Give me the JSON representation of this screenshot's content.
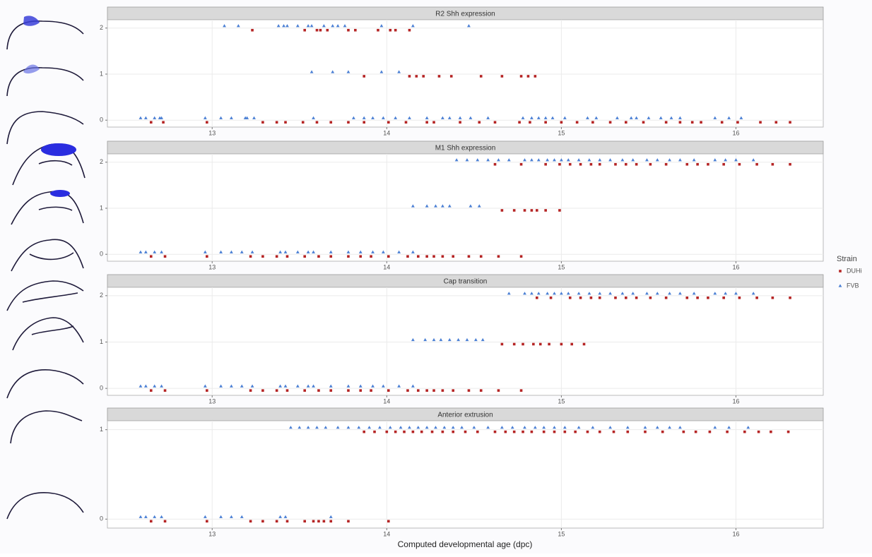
{
  "chart_data": [
    {
      "type": "scatter",
      "title": "R2 Shh expression",
      "legend_title": "Strain",
      "xlim": [
        12.4,
        16.5
      ],
      "xticks": [
        13,
        14,
        15,
        16
      ],
      "ylim": [
        -0.15,
        2.18
      ],
      "yticks": [
        0,
        1,
        2
      ],
      "grid": true,
      "series": [
        {
          "name": "DUHi",
          "color": "#b52424",
          "marker": "square",
          "x": [
            13.23,
            13.53,
            13.6,
            13.62,
            13.66,
            13.78,
            13.82,
            13.95,
            14.02,
            14.05,
            14.13,
            13.87,
            14.13,
            14.17,
            14.21,
            14.3,
            14.37,
            14.54,
            14.66,
            14.77,
            14.81,
            14.85,
            12.65,
            12.72,
            12.97,
            13.29,
            13.37,
            13.42,
            13.52,
            13.6,
            13.68,
            13.78,
            13.87,
            14.01,
            14.11,
            14.23,
            14.27,
            14.42,
            14.53,
            14.62,
            14.76,
            14.82,
            14.91,
            15.0,
            15.09,
            15.18,
            15.28,
            15.37,
            15.47,
            15.6,
            15.68,
            15.75,
            15.8,
            15.92,
            16.01,
            16.14,
            16.23,
            16.31
          ],
          "values": [
            2,
            2,
            2,
            2,
            2,
            2,
            2,
            2,
            2,
            2,
            2,
            1,
            1,
            1,
            1,
            1,
            1,
            1,
            1,
            1,
            1,
            1,
            0,
            0,
            0,
            0,
            0,
            0,
            0,
            0,
            0,
            0,
            0,
            0,
            0,
            0,
            0,
            0,
            0,
            0,
            0,
            0,
            0,
            0,
            0,
            0,
            0,
            0,
            0,
            0,
            0,
            0,
            0,
            0,
            0,
            0,
            0,
            0
          ]
        },
        {
          "name": "FVB",
          "color": "#4a7fd4",
          "marker": "triangle",
          "x": [
            13.07,
            13.15,
            13.38,
            13.41,
            13.43,
            13.49,
            13.55,
            13.57,
            13.64,
            13.69,
            13.72,
            13.76,
            13.97,
            14.15,
            14.47,
            13.57,
            13.69,
            13.78,
            13.97,
            14.07,
            12.59,
            12.62,
            12.67,
            12.7,
            12.71,
            12.96,
            13.05,
            13.11,
            13.19,
            13.2,
            13.24,
            13.58,
            13.81,
            13.87,
            13.92,
            13.98,
            14.05,
            14.13,
            14.23,
            14.32,
            14.36,
            14.42,
            14.48,
            14.58,
            14.78,
            14.83,
            14.87,
            14.91,
            14.95,
            15.02,
            15.15,
            15.2,
            15.32,
            15.4,
            15.43,
            15.5,
            15.57,
            15.63,
            15.68,
            15.88,
            15.96,
            16.03
          ],
          "values": [
            2,
            2,
            2,
            2,
            2,
            2,
            2,
            2,
            2,
            2,
            2,
            2,
            2,
            2,
            2,
            1,
            1,
            1,
            1,
            1,
            0,
            0,
            0,
            0,
            0,
            0,
            0,
            0,
            0,
            0,
            0,
            0,
            0,
            0,
            0,
            0,
            0,
            0,
            0,
            0,
            0,
            0,
            0,
            0,
            0,
            0,
            0,
            0,
            0,
            0,
            0,
            0,
            0,
            0,
            0,
            0,
            0,
            0,
            0,
            0,
            0,
            0
          ]
        }
      ]
    },
    {
      "type": "scatter",
      "title": "M1 Shh expression",
      "xlim": [
        12.4,
        16.5
      ],
      "xticks": [
        13,
        14,
        15,
        16
      ],
      "ylim": [
        -0.15,
        2.18
      ],
      "yticks": [
        0,
        1,
        2
      ],
      "grid": true,
      "series": [
        {
          "name": "DUHi",
          "color": "#b52424",
          "marker": "square",
          "x": [
            14.62,
            14.77,
            14.91,
            14.99,
            15.05,
            15.11,
            15.17,
            15.22,
            15.31,
            15.37,
            15.43,
            15.51,
            15.6,
            15.72,
            15.78,
            15.84,
            15.93,
            16.02,
            16.12,
            16.21,
            16.31,
            14.66,
            14.73,
            14.79,
            14.83,
            14.86,
            14.91,
            14.99,
            12.65,
            12.73,
            12.97,
            13.22,
            13.29,
            13.37,
            13.43,
            13.53,
            13.61,
            13.68,
            13.78,
            13.85,
            13.91,
            14.01,
            14.12,
            14.18,
            14.23,
            14.27,
            14.32,
            14.38,
            14.47,
            14.54,
            14.64,
            14.77
          ],
          "values": [
            2,
            2,
            2,
            2,
            2,
            2,
            2,
            2,
            2,
            2,
            2,
            2,
            2,
            2,
            2,
            2,
            2,
            2,
            2,
            2,
            2,
            1,
            1,
            1,
            1,
            1,
            1,
            1,
            0,
            0,
            0,
            0,
            0,
            0,
            0,
            0,
            0,
            0,
            0,
            0,
            0,
            0,
            0,
            0,
            0,
            0,
            0,
            0,
            0,
            0,
            0,
            0
          ]
        },
        {
          "name": "FVB",
          "color": "#4a7fd4",
          "marker": "triangle",
          "x": [
            14.4,
            14.46,
            14.52,
            14.58,
            14.64,
            14.7,
            14.79,
            14.83,
            14.87,
            14.92,
            14.96,
            15.0,
            15.04,
            15.1,
            15.16,
            15.22,
            15.28,
            15.35,
            15.41,
            15.49,
            15.55,
            15.62,
            15.68,
            15.76,
            15.88,
            15.94,
            16.0,
            16.1,
            14.15,
            14.23,
            14.28,
            14.32,
            14.36,
            14.48,
            14.53,
            12.59,
            12.62,
            12.67,
            12.71,
            12.96,
            13.05,
            13.11,
            13.17,
            13.23,
            13.39,
            13.42,
            13.49,
            13.55,
            13.58,
            13.68,
            13.78,
            13.85,
            13.92,
            13.98,
            14.07,
            14.15
          ],
          "values": [
            2,
            2,
            2,
            2,
            2,
            2,
            2,
            2,
            2,
            2,
            2,
            2,
            2,
            2,
            2,
            2,
            2,
            2,
            2,
            2,
            2,
            2,
            2,
            2,
            2,
            2,
            2,
            2,
            1,
            1,
            1,
            1,
            1,
            1,
            1,
            0,
            0,
            0,
            0,
            0,
            0,
            0,
            0,
            0,
            0,
            0,
            0,
            0,
            0,
            0,
            0,
            0,
            0,
            0,
            0,
            0
          ]
        }
      ]
    },
    {
      "type": "scatter",
      "title": "Cap transition",
      "xlim": [
        12.4,
        16.5
      ],
      "xticks": [
        13,
        14,
        15,
        16
      ],
      "ylim": [
        -0.15,
        2.18
      ],
      "yticks": [
        0,
        1,
        2
      ],
      "grid": true,
      "series": [
        {
          "name": "DUHi",
          "color": "#b52424",
          "marker": "square",
          "x": [
            14.86,
            14.94,
            15.05,
            15.11,
            15.17,
            15.22,
            15.31,
            15.37,
            15.43,
            15.51,
            15.6,
            15.72,
            15.78,
            15.84,
            15.93,
            16.02,
            16.12,
            16.21,
            16.31,
            14.66,
            14.73,
            14.78,
            14.84,
            14.88,
            14.93,
            15.0,
            15.06,
            15.13,
            12.65,
            12.73,
            12.97,
            13.22,
            13.29,
            13.37,
            13.43,
            13.53,
            13.61,
            13.68,
            13.78,
            13.85,
            13.91,
            14.01,
            14.12,
            14.18,
            14.23,
            14.27,
            14.32,
            14.38,
            14.47,
            14.54,
            14.64,
            14.77
          ],
          "values": [
            2,
            2,
            2,
            2,
            2,
            2,
            2,
            2,
            2,
            2,
            2,
            2,
            2,
            2,
            2,
            2,
            2,
            2,
            2,
            1,
            1,
            1,
            1,
            1,
            1,
            1,
            1,
            1,
            0,
            0,
            0,
            0,
            0,
            0,
            0,
            0,
            0,
            0,
            0,
            0,
            0,
            0,
            0,
            0,
            0,
            0,
            0,
            0,
            0,
            0,
            0,
            0
          ]
        },
        {
          "name": "FVB",
          "color": "#4a7fd4",
          "marker": "triangle",
          "x": [
            14.7,
            14.79,
            14.83,
            14.87,
            14.92,
            14.96,
            15.0,
            15.04,
            15.1,
            15.16,
            15.22,
            15.28,
            15.35,
            15.41,
            15.49,
            15.55,
            15.62,
            15.68,
            15.76,
            15.88,
            15.94,
            16.0,
            16.1,
            14.15,
            14.22,
            14.27,
            14.31,
            14.36,
            14.41,
            14.46,
            14.51,
            14.55,
            12.59,
            12.62,
            12.67,
            12.71,
            12.96,
            13.05,
            13.11,
            13.17,
            13.23,
            13.39,
            13.42,
            13.49,
            13.55,
            13.58,
            13.68,
            13.78,
            13.85,
            13.92,
            13.98,
            14.07,
            14.15
          ],
          "values": [
            2,
            2,
            2,
            2,
            2,
            2,
            2,
            2,
            2,
            2,
            2,
            2,
            2,
            2,
            2,
            2,
            2,
            2,
            2,
            2,
            2,
            2,
            2,
            1,
            1,
            1,
            1,
            1,
            1,
            1,
            1,
            1,
            0,
            0,
            0,
            0,
            0,
            0,
            0,
            0,
            0,
            0,
            0,
            0,
            0,
            0,
            0,
            0,
            0,
            0,
            0,
            0,
            0
          ]
        }
      ]
    },
    {
      "type": "scatter",
      "title": "Anterior extrusion",
      "xlabel": "Computed developmental age (dpc)",
      "xlim": [
        12.4,
        16.5
      ],
      "xticks": [
        13,
        14,
        15,
        16
      ],
      "ylim": [
        -0.1,
        1.1
      ],
      "yticks": [
        0,
        1
      ],
      "grid": true,
      "series": [
        {
          "name": "DUHi",
          "color": "#b52424",
          "marker": "square",
          "x": [
            13.87,
            13.93,
            14.0,
            14.05,
            14.1,
            14.15,
            14.2,
            14.26,
            14.32,
            14.38,
            14.45,
            14.52,
            14.62,
            14.68,
            14.73,
            14.78,
            14.83,
            14.9,
            14.96,
            15.02,
            15.08,
            15.15,
            15.22,
            15.3,
            15.38,
            15.48,
            15.58,
            15.7,
            15.77,
            15.85,
            15.95,
            16.05,
            16.13,
            16.2,
            16.3,
            12.65,
            12.73,
            12.97,
            13.22,
            13.29,
            13.37,
            13.43,
            13.53,
            13.58,
            13.61,
            13.64,
            13.68,
            13.78,
            14.01
          ],
          "values": [
            1,
            1,
            1,
            1,
            1,
            1,
            1,
            1,
            1,
            1,
            1,
            1,
            1,
            1,
            1,
            1,
            1,
            1,
            1,
            1,
            1,
            1,
            1,
            1,
            1,
            1,
            1,
            1,
            1,
            1,
            1,
            1,
            1,
            1,
            1,
            0,
            0,
            0,
            0,
            0,
            0,
            0,
            0,
            0,
            0,
            0,
            0,
            0,
            0
          ]
        },
        {
          "name": "FVB",
          "color": "#4a7fd4",
          "marker": "triangle",
          "x": [
            13.45,
            13.5,
            13.55,
            13.6,
            13.65,
            13.72,
            13.78,
            13.84,
            13.9,
            13.96,
            14.02,
            14.08,
            14.13,
            14.18,
            14.23,
            14.28,
            14.33,
            14.38,
            14.43,
            14.5,
            14.58,
            14.66,
            14.72,
            14.79,
            14.85,
            14.9,
            14.96,
            15.02,
            15.1,
            15.18,
            15.28,
            15.38,
            15.48,
            15.55,
            15.62,
            15.68,
            15.88,
            15.96,
            16.07,
            12.59,
            12.62,
            12.67,
            12.71,
            12.96,
            13.05,
            13.11,
            13.17,
            13.39,
            13.42,
            13.68
          ],
          "values": [
            1,
            1,
            1,
            1,
            1,
            1,
            1,
            1,
            1,
            1,
            1,
            1,
            1,
            1,
            1,
            1,
            1,
            1,
            1,
            1,
            1,
            1,
            1,
            1,
            1,
            1,
            1,
            1,
            1,
            1,
            1,
            1,
            1,
            1,
            1,
            1,
            1,
            1,
            1,
            0,
            0,
            0,
            0,
            0,
            0,
            0,
            0,
            0,
            0,
            0
          ]
        }
      ]
    }
  ]
}
